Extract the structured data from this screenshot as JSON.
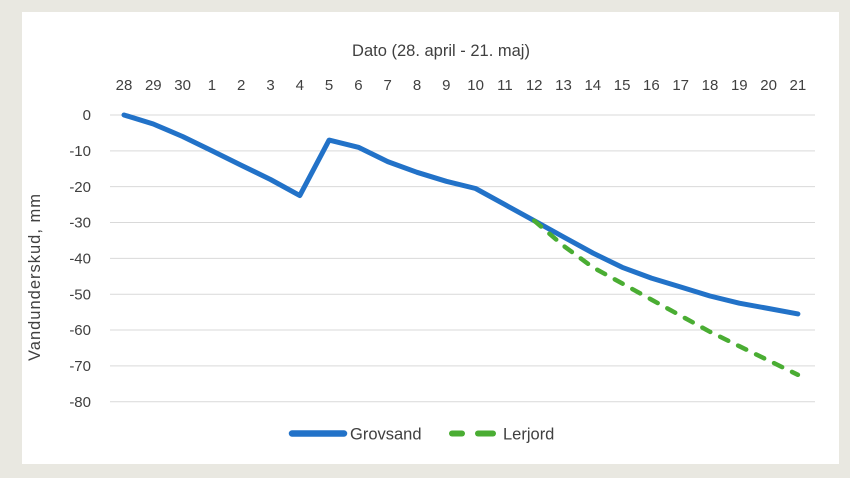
{
  "chart_data": {
    "type": "line",
    "title": "Dato (28. april - 21. maj)",
    "ylabel": "Vandunderskud, mm",
    "categories": [
      "28",
      "29",
      "30",
      "1",
      "2",
      "3",
      "4",
      "5",
      "6",
      "7",
      "8",
      "9",
      "10",
      "11",
      "12",
      "13",
      "14",
      "15",
      "16",
      "17",
      "18",
      "19",
      "20",
      "21"
    ],
    "y_ticks": [
      0,
      -10,
      -20,
      -30,
      -40,
      -50,
      -60,
      -70,
      -80
    ],
    "ylim": [
      -80,
      0
    ],
    "grid": true,
    "legend_position": "bottom",
    "colors": {
      "background": "#e9e8e1",
      "plot_background": "#ffffff",
      "grid": "#d9d9d9",
      "text": "#404040"
    },
    "series": [
      {
        "name": "Grovsand",
        "color": "#2272c8",
        "style": "solid",
        "values": [
          0,
          -2.5,
          -6,
          -10,
          -14,
          -18,
          -22.5,
          -7,
          -9,
          -13,
          -16,
          -18.5,
          -20.5,
          -25,
          -29.5,
          -34,
          -38.5,
          -42.5,
          -45.5,
          -48,
          -50.5,
          -52.5,
          -54,
          -55.5
        ]
      },
      {
        "name": "Lerjord",
        "color": "#4aad33",
        "style": "dashed",
        "values": [
          null,
          null,
          null,
          null,
          null,
          null,
          null,
          null,
          null,
          null,
          null,
          null,
          null,
          null,
          -29.5,
          -36.5,
          -42.5,
          -47,
          -51.5,
          -56,
          -60.5,
          -64.5,
          -68.5,
          -72.5
        ]
      }
    ]
  }
}
